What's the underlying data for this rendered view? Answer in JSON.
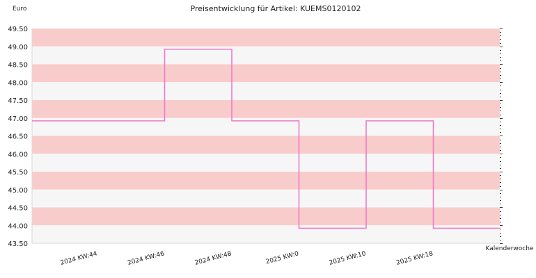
{
  "chart_data": {
    "type": "line",
    "step": true,
    "title": "Preisentwicklung für Artikel: KUEMS0120102",
    "ylabel": "Euro",
    "xlabel": "Kalenderwoche",
    "ylim": [
      43.5,
      49.5
    ],
    "y_ticks": [
      "49.50",
      "49.00",
      "48.50",
      "48.00",
      "47.50",
      "47.00",
      "46.50",
      "46.00",
      "45.50",
      "45.00",
      "44.50",
      "44.00",
      "43.50"
    ],
    "x_ticks": [
      "2024 KW:44",
      "2024 KW:46",
      "2024 KW:48",
      "2025 KW:0",
      "2025 KW:10",
      "2025 KW:18"
    ],
    "band_colors": [
      "#f9cccc",
      "#f6f6f6"
    ],
    "line_color": "#f07ac8",
    "series": [
      {
        "points": [
          {
            "x": "start",
            "y": 46.92
          },
          {
            "x": "2024 KW:46",
            "y": 48.92
          },
          {
            "x": "2024 KW:48",
            "y": 46.92
          },
          {
            "x": "2025 KW:0",
            "y": 43.92
          },
          {
            "x": "2025 KW:10",
            "y": 46.92
          },
          {
            "x": "2025 KW:18",
            "y": 43.92
          }
        ]
      }
    ]
  }
}
